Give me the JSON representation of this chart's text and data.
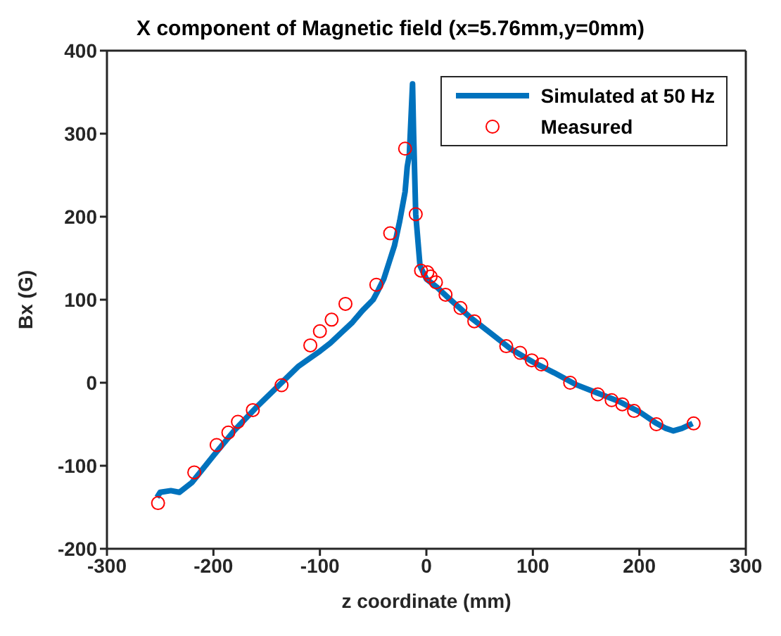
{
  "chart_data": {
    "type": "line",
    "title": "X component of Magnetic field (x=5.76mm,y=0mm)",
    "xlabel": "z coordinate (mm)",
    "ylabel": "Bx (G)",
    "xlim": [
      -300,
      300
    ],
    "xticks": [
      -300,
      -200,
      -100,
      0,
      100,
      200,
      300
    ],
    "ylim": [
      -200,
      400
    ],
    "yticks": [
      -200,
      -100,
      0,
      100,
      200,
      300,
      400
    ],
    "grid": false,
    "legend": "top right",
    "series": [
      {
        "name": "Simulated at 50 Hz",
        "color": "#0072bd",
        "marker": "none",
        "line_style": "solid",
        "x": [
          -253,
          -250,
          -240,
          -232,
          -220,
          -200,
          -180,
          -160,
          -140,
          -120,
          -100,
          -90,
          -80,
          -70,
          -60,
          -50,
          -45,
          -40,
          -35,
          -30,
          -25,
          -20,
          -18,
          -16,
          -13,
          -12,
          -10,
          -6,
          0,
          10,
          20,
          40,
          60,
          80,
          100,
          120,
          140,
          160,
          180,
          200,
          215,
          225,
          232,
          240,
          250
        ],
        "values": [
          -138,
          -132,
          -130,
          -132,
          -120,
          -88,
          -57,
          -30,
          -5,
          20,
          38,
          48,
          60,
          72,
          87,
          100,
          112,
          125,
          145,
          165,
          195,
          230,
          260,
          275,
          360,
          300,
          203,
          141,
          125,
          115,
          103,
          80,
          60,
          40,
          25,
          12,
          -2,
          -12,
          -22,
          -35,
          -48,
          -55,
          -58,
          -55,
          -49
        ]
      },
      {
        "name": "Measured",
        "type": "scatter",
        "color": "#ff0000",
        "marker": "circle",
        "x": [
          -252,
          -218,
          -197,
          -186,
          -177,
          -163,
          -136,
          -109,
          -100,
          -89,
          -76,
          -47,
          -34,
          -20,
          -10,
          -5,
          1,
          4,
          9,
          18,
          32,
          45,
          75,
          88,
          99,
          108,
          135,
          161,
          174,
          184,
          195,
          216,
          251
        ],
        "values": [
          -145,
          -108,
          -75,
          -60,
          -47,
          -33,
          -3,
          45,
          62,
          76,
          95,
          118,
          180,
          282,
          203,
          135,
          133,
          128,
          121,
          106,
          90,
          74,
          44,
          36,
          27,
          22,
          0,
          -14,
          -21,
          -26,
          -34,
          -50,
          -49
        ]
      }
    ]
  }
}
